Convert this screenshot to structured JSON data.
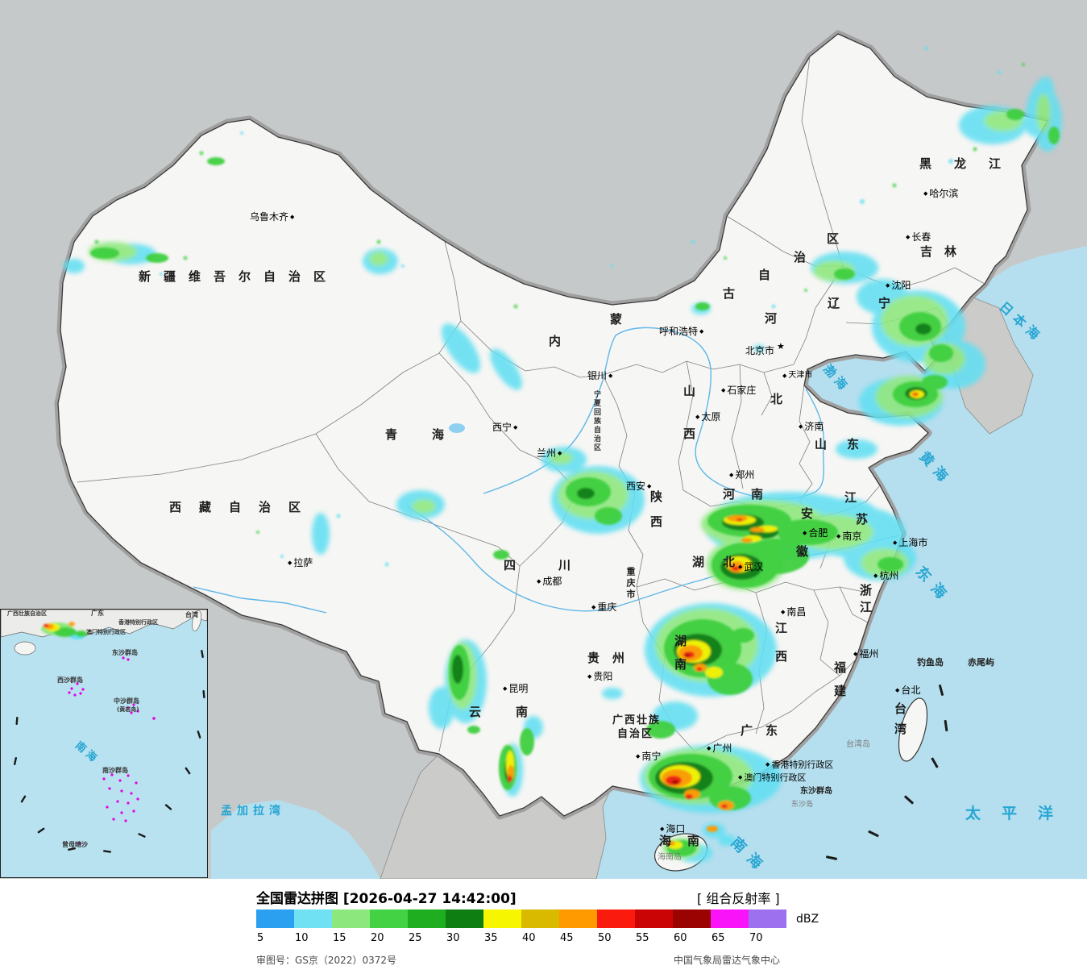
{
  "header": {
    "title": "全国雷达拼图 [2026-04-27 14:42:00]",
    "product": "[ 组合反射率 ]"
  },
  "legend": {
    "unit": "dBZ",
    "values": [
      "5",
      "10",
      "15",
      "20",
      "25",
      "30",
      "35",
      "40",
      "45",
      "50",
      "55",
      "60",
      "65",
      "70"
    ],
    "colors": [
      "#2ba0f0",
      "#6fe1f2",
      "#8ce87d",
      "#43d243",
      "#1fae1f",
      "#0e7d12",
      "#f6f600",
      "#d9ba00",
      "#ff9a00",
      "#fb1b0e",
      "#ca0404",
      "#9b0202",
      "#f813f8",
      "#9d70f0"
    ],
    "approval": "审图号：GS京（2022）0372号",
    "credit": "中国气象局雷达气象中心"
  },
  "markers": {
    "city": "◆",
    "capital": "★"
  },
  "provinces": {
    "xinjiang": "新疆维吾尔自治区",
    "xizang": "西藏自治区",
    "qinghai": "青海",
    "sichuan": "四川",
    "yunnan": "云南",
    "guizhou": "贵州",
    "guangdong": "广东",
    "hunan": "湖南",
    "jiangxi": "江西",
    "fujian": "福建",
    "zhejiang": "浙江",
    "taiwan": "台湾",
    "hainan": "海南",
    "hubei": "湖北",
    "henan": "河南",
    "shandong": "山东",
    "shanxi1": "山",
    "shanxi2": "西",
    "shaanxi": "陕西",
    "hebei1": "河",
    "hebei2": "北",
    "jiangsu1": "江",
    "jiangsu2": "苏",
    "anhui1": "安",
    "anhui2": "徽",
    "heilongjiang": "黑龙江",
    "jilin": "吉林",
    "liaoning": "辽宁",
    "nmg1": "内",
    "nmg2": "蒙",
    "nmg3": "古",
    "nmg4": "自",
    "nmg5": "治",
    "nmg6": "区",
    "ningxia": "宁夏回族自治区",
    "chongqing": "重庆市",
    "guangxi1": "广西壮族",
    "guangxi2": "自治区"
  },
  "cities": {
    "wulumuqi": "乌鲁木齐",
    "lasa": "拉萨",
    "xining": "西宁",
    "lanzhou": "兰州",
    "yinchuan": "银川",
    "huhehaote": "呼和浩特",
    "beijing": "北京市",
    "tianjin": "天津市",
    "shijiazhuang": "石家庄",
    "taiyuan": "太原",
    "jinan": "济南",
    "zhengzhou": "郑州",
    "xian": "西安",
    "wuhan": "武汉",
    "hefei": "合肥",
    "nanjing": "南京",
    "shanghai": "上海市",
    "hangzhou": "杭州",
    "nanchang": "南昌",
    "fuzhou": "福州",
    "taibei": "台北",
    "guiyang": "贵阳",
    "kunming": "昆明",
    "chengdu": "成都",
    "chongqing": "重庆",
    "nanning": "南宁",
    "guangzhou": "广州",
    "haikou": "海口",
    "haerbin": "哈尔滨",
    "changchun": "长春",
    "shenyang": "沈阳",
    "xianggang": "香港特别行政区",
    "aomen": "澳门特别行政区"
  },
  "seas": {
    "bohai": "渤海",
    "huanghai": "黄海",
    "donghai": "东海",
    "nanhai": "南海",
    "ribenhai": "日本海",
    "taipingyang": "太平洋",
    "mengjialawan": "孟加拉湾"
  },
  "islands": {
    "taiwandao": "台湾岛",
    "hainandao": "海南岛",
    "diaoyudao": "钓鱼岛",
    "chiweiyu": "赤尾屿",
    "dongshaqundao": "东沙群岛",
    "dongshadao": "东沙岛"
  },
  "inset": {
    "guangxi": "广西壮族自治区",
    "guangdong": "广东",
    "xianggang": "香港特别行政区",
    "aomen": "澳门特别行政区",
    "taiwan": "台湾",
    "dongsha": "东沙群岛",
    "xisha": "西沙群岛",
    "zhongsha": "中沙群岛",
    "huangyan": "(黄岩岛)",
    "nansha": "南沙群岛",
    "zengmu": "曾母暗沙",
    "nanhai": "南海"
  }
}
